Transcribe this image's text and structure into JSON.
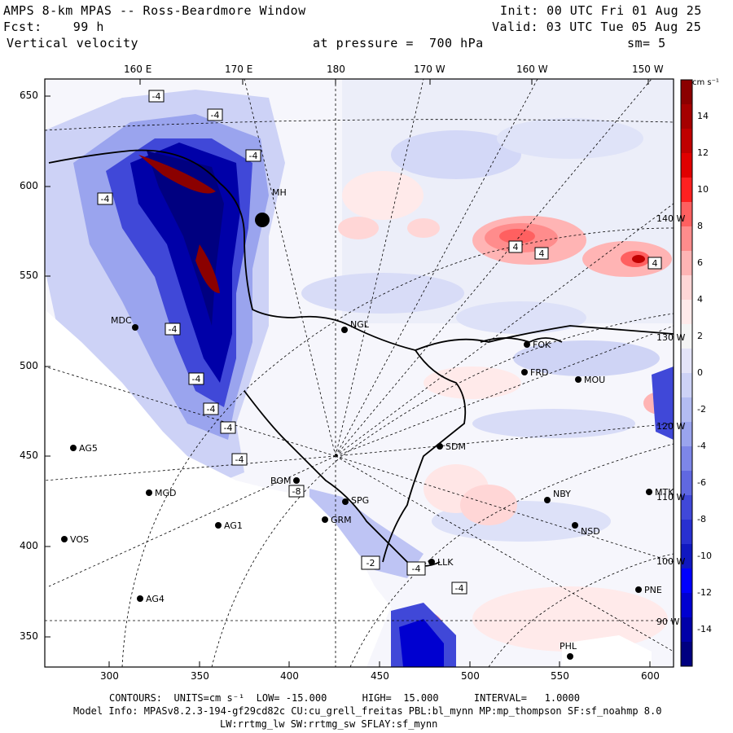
{
  "header": {
    "model_title": "AMPS 8-km MPAS -- Ross-Beardmore Window",
    "forecast": "Fcst:    99 h",
    "field": "Vertical velocity",
    "init": "Init: 00 UTC Fri 01 Aug 25",
    "valid": "Valid: 03 UTC Tue 05 Aug 25",
    "pressure": "at pressure =  700 hPa",
    "smoothing": "sm= 5"
  },
  "axes": {
    "top_longitudes": [
      "160 E",
      "170 E",
      "180",
      "170 W",
      "160 W",
      "150 W"
    ],
    "left_y": [
      "650",
      "600",
      "550",
      "500",
      "450",
      "400",
      "350"
    ],
    "bottom_x": [
      "300",
      "350",
      "400",
      "450",
      "500",
      "550",
      "600"
    ],
    "right_longitudes": [
      "140 W",
      "130 W",
      "120 W",
      "110 W",
      "100 W",
      "90 W"
    ]
  },
  "colorbar": {
    "units": "cm s⁻¹",
    "labels": [
      "14",
      "12",
      "10",
      "8",
      "6",
      "4",
      "2",
      "0",
      "-2",
      "-4",
      "-6",
      "-8",
      "-10",
      "-12",
      "-14"
    ],
    "colors": [
      "#8b0000",
      "#a50000",
      "#c00000",
      "#e00000",
      "#ff2020",
      "#ff6060",
      "#ff8c8c",
      "#ffb4b4",
      "#ffd6d6",
      "#ffeaea",
      "#f4f4f4",
      "#e4e4f8",
      "#cdd2f6",
      "#b3bcf2",
      "#9aa4ee",
      "#7d86e8",
      "#6068e0",
      "#4048d8",
      "#2830d0",
      "#1018c0",
      "#0000ff",
      "#0000d0",
      "#0000a8",
      "#000080"
    ]
  },
  "stations": [
    {
      "id": "MDC"
    },
    {
      "id": "NGL"
    },
    {
      "id": "FOK"
    },
    {
      "id": "FRD"
    },
    {
      "id": "MOU"
    },
    {
      "id": "SDM"
    },
    {
      "id": "AG5"
    },
    {
      "id": "MGD"
    },
    {
      "id": "AG1"
    },
    {
      "id": "VOS"
    },
    {
      "id": "AG4"
    },
    {
      "id": "BOM"
    },
    {
      "id": "SPG"
    },
    {
      "id": "GRM"
    },
    {
      "id": "NBY"
    },
    {
      "id": "MTK"
    },
    {
      "id": "NSD"
    },
    {
      "id": "LLK"
    },
    {
      "id": "PNE"
    },
    {
      "id": "PHL"
    },
    {
      "id": "MH"
    }
  ],
  "contour_labels": [
    "-4",
    "-4",
    "-4",
    "-4",
    "-4",
    "-4",
    "-4",
    "-4",
    "-4",
    "4",
    "4",
    "4",
    "-8",
    "-4",
    "-2",
    "-4"
  ],
  "footer": {
    "contours": "CONTOURS:  UNITS=cm s⁻¹  LOW= -15.000      HIGH=  15.000      INTERVAL=   1.0000",
    "model_info": "Model Info: MPASv8.2.3-194-gf29cd82c CU:cu_grell_freitas PBL:bl_mynn MP:mp_thompson SF:sf_noahmp 8.0",
    "physics": "LW:rrtmg_lw SW:rrtmg_sw SFLAY:sf_mynn"
  }
}
